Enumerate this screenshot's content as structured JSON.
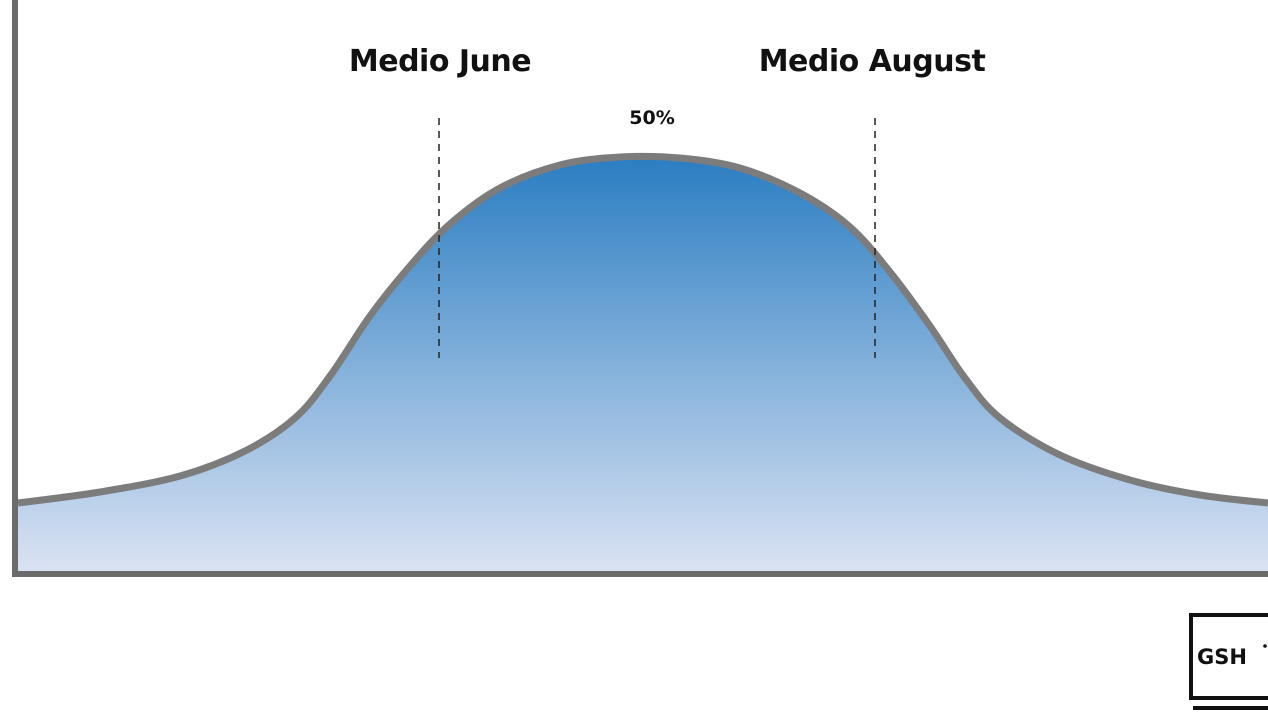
{
  "chart_data": {
    "type": "area",
    "title": "",
    "xlabel": "",
    "ylabel": "",
    "axis_color": "#6b6b6b",
    "curve_color": "#7c7c7c",
    "fill_top_color": "#2a7dc2",
    "fill_bottom_color": "#dbe3f3",
    "peak_label": "50%",
    "markers": [
      {
        "label": "Medio June"
      },
      {
        "label": "Medio August"
      }
    ]
  },
  "logo": {
    "text": "GSH"
  }
}
